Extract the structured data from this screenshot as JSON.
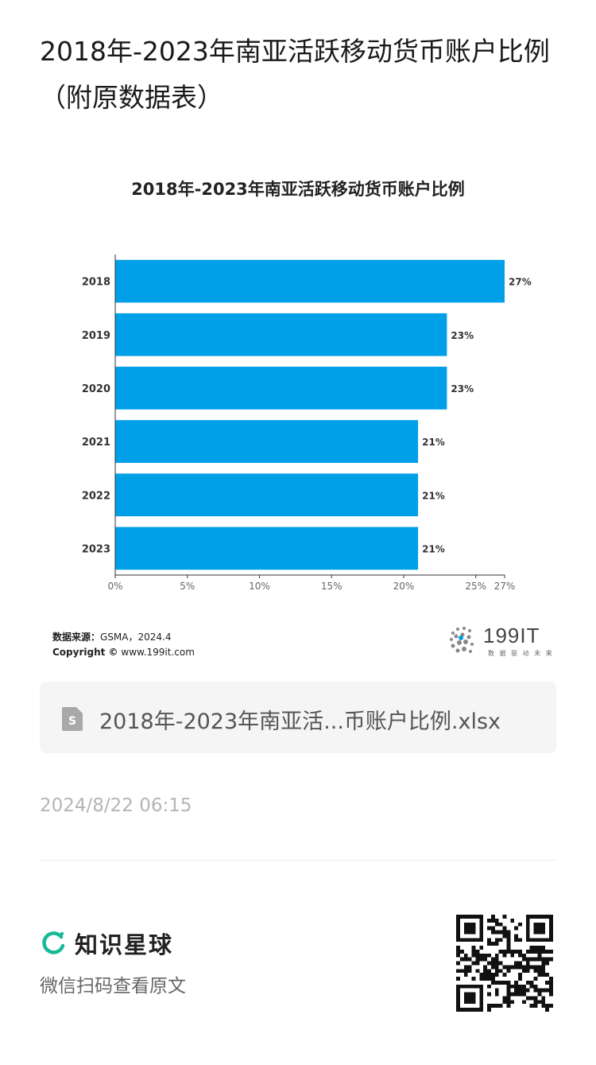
{
  "article": {
    "title": "2018年-2023年南亚活跃移动货币账户比例（附原数据表）"
  },
  "chart": {
    "title": "2018年-2023年南亚活跃移动货币账户比例",
    "source_label": "数据来源：",
    "source_value": "GSMA，2024.4",
    "copyright_label": "Copyright ©",
    "copyright_value": "www.199it.com",
    "logo_text": "199IT",
    "logo_sub": "数 据 驱 动 未 来"
  },
  "chart_data": {
    "type": "bar",
    "orientation": "horizontal",
    "title": "2018年-2023年南亚活跃移动货币账户比例",
    "categories": [
      "2018",
      "2019",
      "2020",
      "2021",
      "2022",
      "2023"
    ],
    "values": [
      27,
      23,
      23,
      21,
      21,
      21
    ],
    "data_labels": [
      "27%",
      "23%",
      "23%",
      "21%",
      "21%",
      "21%"
    ],
    "xlim": [
      0,
      27
    ],
    "x_ticks": [
      0,
      5,
      10,
      15,
      20,
      25,
      27
    ],
    "x_tick_labels": [
      "0%",
      "5%",
      "10%",
      "15%",
      "20%",
      "25%",
      "27%"
    ],
    "bar_color": "#00a0e9",
    "grid": false
  },
  "file": {
    "name": "2018年-2023年南亚活...币账户比例.xlsx",
    "icon": "spreadsheet-file-icon"
  },
  "post": {
    "timestamp": "2024/8/22 06:15"
  },
  "footer": {
    "brand_name": "知识星球",
    "brand_icon": "zsxq-logo-icon",
    "brand_color": "#16b998",
    "hint": "微信扫码查看原文",
    "qr_icon": "qr-code"
  }
}
